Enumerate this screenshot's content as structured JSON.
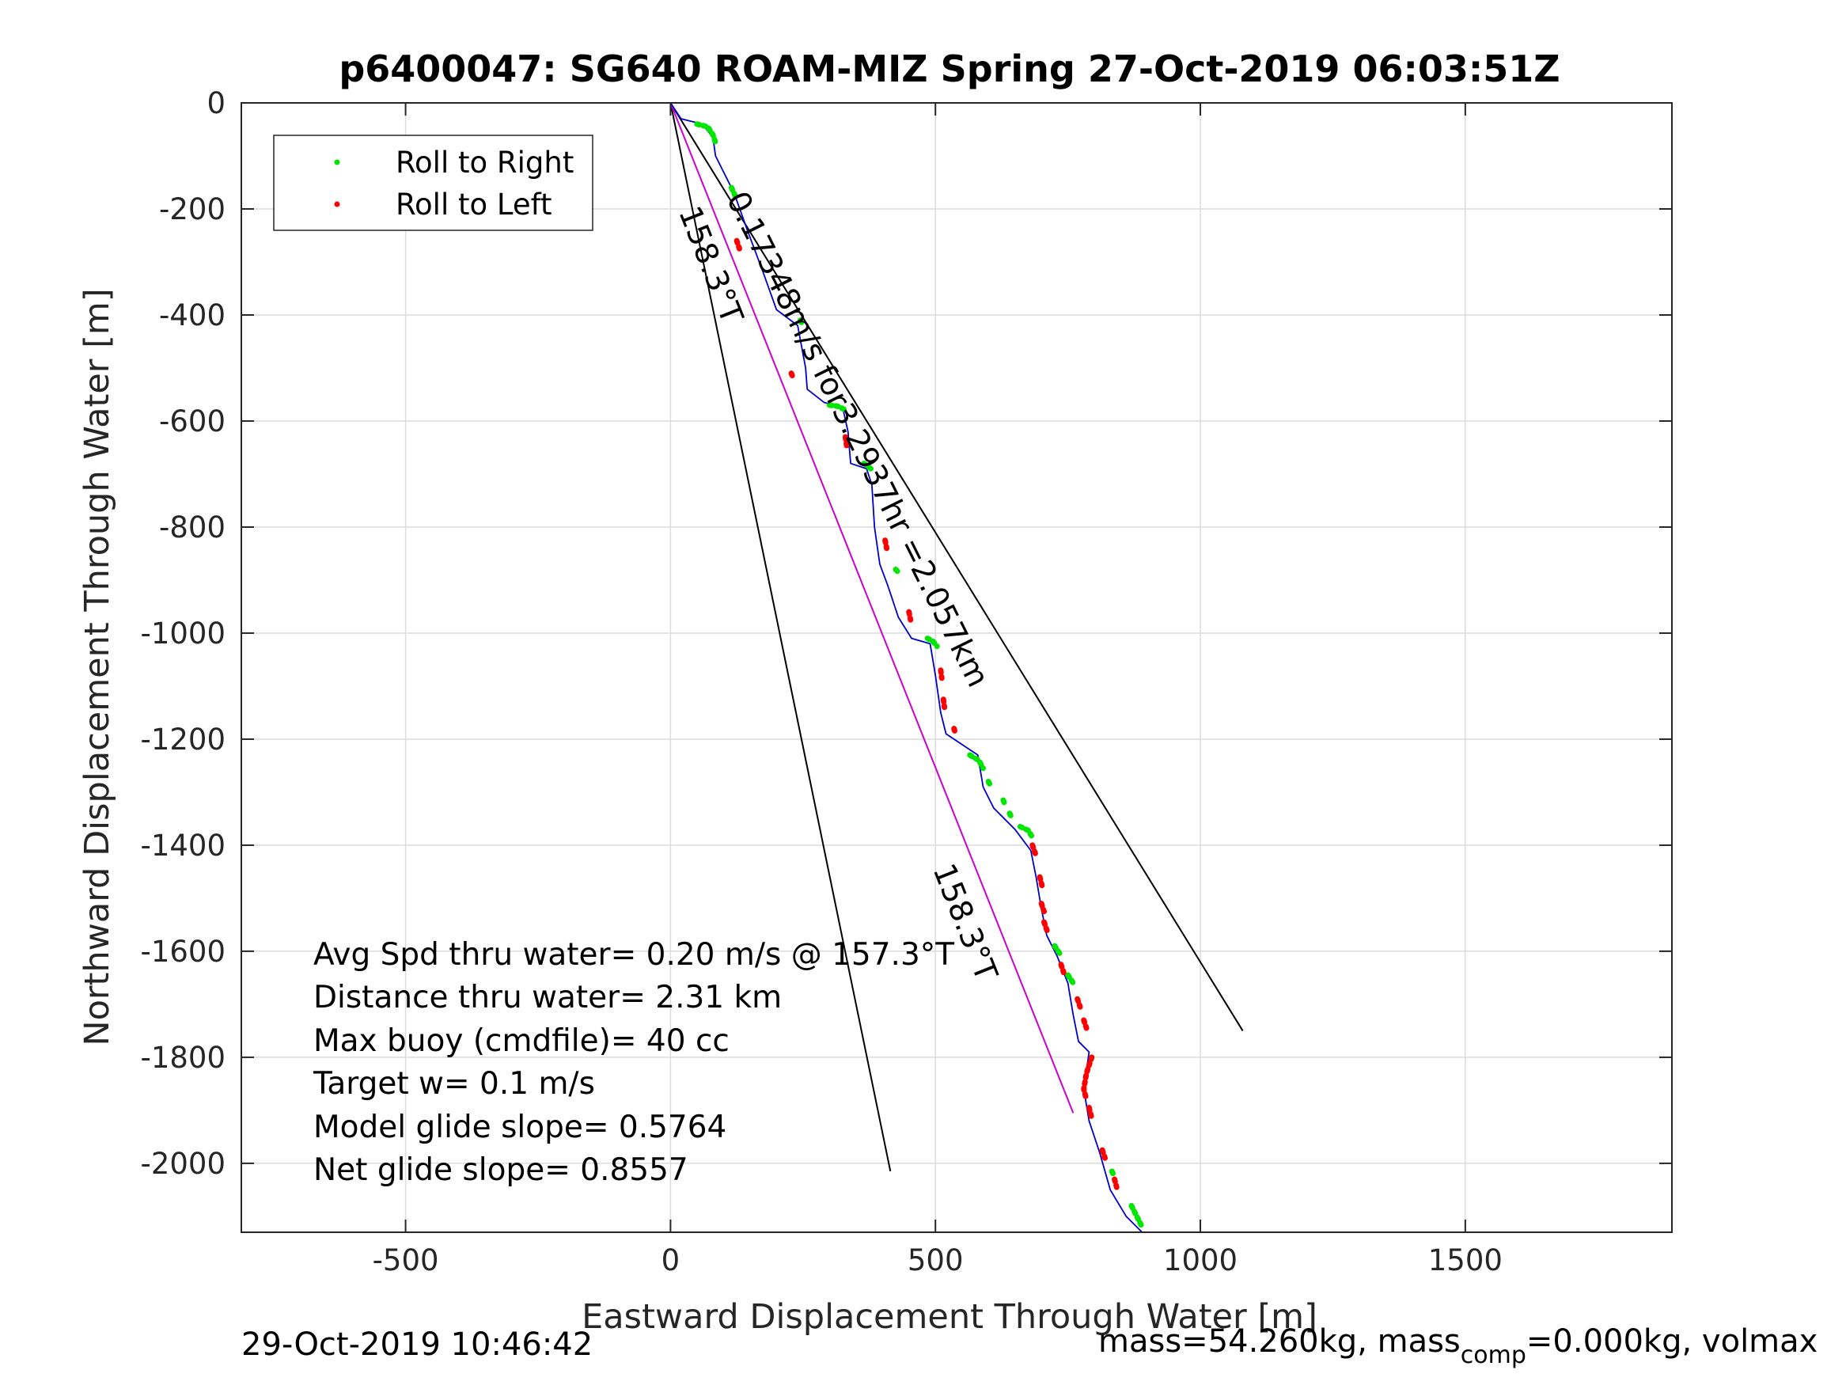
{
  "chart_data": {
    "type": "line",
    "title": "p6400047: SG640 ROAM-MIZ Spring 27-Oct-2019 06:03:51Z",
    "xlabel": "Eastward Displacement Through Water [m]",
    "ylabel": "Northward Displacement Through Water [m]",
    "xlim": [
      -810,
      1890
    ],
    "ylim": [
      -2130,
      0
    ],
    "xticks": [
      -500,
      0,
      500,
      1000,
      1500
    ],
    "yticks": [
      0,
      -200,
      -400,
      -600,
      -800,
      -1000,
      -1200,
      -1400,
      -1600,
      -1800,
      -2000
    ],
    "grid": true,
    "legend": {
      "position": "top-left",
      "entries": [
        {
          "label": "Roll to Right",
          "color": "#00e600"
        },
        {
          "label": "Roll to Left",
          "color": "#ff0000"
        }
      ]
    },
    "track": {
      "color": "#0000cc",
      "x": [
        0,
        20,
        60,
        80,
        85,
        105,
        120,
        145,
        175,
        200,
        240,
        255,
        258,
        290,
        325,
        335,
        340,
        370,
        380,
        385,
        395,
        410,
        430,
        455,
        490,
        500,
        510,
        520,
        580,
        590,
        610,
        650,
        680,
        690,
        700,
        710,
        730,
        750,
        760,
        770,
        790,
        780,
        790,
        810,
        830,
        860,
        890
      ],
      "y": [
        0,
        -30,
        -40,
        -65,
        -100,
        -140,
        -170,
        -240,
        -320,
        -390,
        -420,
        -500,
        -540,
        -565,
        -575,
        -620,
        -680,
        -690,
        -720,
        -800,
        -870,
        -910,
        -970,
        -1010,
        -1020,
        -1080,
        -1150,
        -1190,
        -1230,
        -1290,
        -1330,
        -1370,
        -1410,
        -1460,
        -1520,
        -1570,
        -1610,
        -1660,
        -1720,
        -1770,
        -1790,
        -1860,
        -1920,
        -1980,
        -2050,
        -2100,
        -2130
      ]
    },
    "roll_right_segments": [
      {
        "x": [
          50,
          70,
          80,
          85
        ],
        "y": [
          -40,
          -45,
          -60,
          -75
        ]
      },
      {
        "x": [
          115,
          122
        ],
        "y": [
          -160,
          -175
        ]
      },
      {
        "x": [
          245,
          250
        ],
        "y": [
          -410,
          -420
        ]
      },
      {
        "x": [
          300,
          315,
          328
        ],
        "y": [
          -570,
          -572,
          -578
        ]
      },
      {
        "x": [
          365,
          378
        ],
        "y": [
          -680,
          -690
        ]
      },
      {
        "x": [
          425,
          430
        ],
        "y": [
          -880,
          -885
        ]
      },
      {
        "x": [
          485,
          495,
          503
        ],
        "y": [
          -1010,
          -1015,
          -1025
        ]
      },
      {
        "x": [
          565,
          582,
          590
        ],
        "y": [
          -1230,
          -1240,
          -1255
        ]
      },
      {
        "x": [
          600,
          605
        ],
        "y": [
          -1280,
          -1290
        ]
      },
      {
        "x": [
          628,
          632
        ],
        "y": [
          -1315,
          -1325
        ]
      },
      {
        "x": [
          640,
          645
        ],
        "y": [
          -1340,
          -1350
        ]
      },
      {
        "x": [
          660,
          675,
          683
        ],
        "y": [
          -1365,
          -1372,
          -1385
        ]
      },
      {
        "x": [
          725,
          735
        ],
        "y": [
          -1590,
          -1605
        ]
      },
      {
        "x": [
          750,
          760
        ],
        "y": [
          -1645,
          -1660
        ]
      },
      {
        "x": [
          833,
          838
        ],
        "y": [
          -2015,
          -2025
        ]
      },
      {
        "x": [
          870,
          880,
          890
        ],
        "y": [
          -2080,
          -2100,
          -2120
        ]
      }
    ],
    "roll_left_segments": [
      {
        "x": [
          125,
          130
        ],
        "y": [
          -260,
          -275
        ]
      },
      {
        "x": [
          228,
          232
        ],
        "y": [
          -510,
          -520
        ]
      },
      {
        "x": [
          330,
          333
        ],
        "y": [
          -630,
          -650
        ]
      },
      {
        "x": [
          405,
          408
        ],
        "y": [
          -825,
          -840
        ]
      },
      {
        "x": [
          450,
          453
        ],
        "y": [
          -960,
          -975
        ]
      },
      {
        "x": [
          510,
          512
        ],
        "y": [
          -1070,
          -1085
        ]
      },
      {
        "x": [
          515,
          517
        ],
        "y": [
          -1125,
          -1140
        ]
      },
      {
        "x": [
          535,
          538
        ],
        "y": [
          -1180,
          -1190
        ]
      },
      {
        "x": [
          683,
          690
        ],
        "y": [
          -1400,
          -1420
        ]
      },
      {
        "x": [
          697,
          702
        ],
        "y": [
          -1460,
          -1480
        ]
      },
      {
        "x": [
          700,
          705
        ],
        "y": [
          -1510,
          -1525
        ]
      },
      {
        "x": [
          705,
          712
        ],
        "y": [
          -1545,
          -1565
        ]
      },
      {
        "x": [
          737,
          742
        ],
        "y": [
          -1625,
          -1640
        ]
      },
      {
        "x": [
          768,
          773
        ],
        "y": [
          -1690,
          -1705
        ]
      },
      {
        "x": [
          780,
          785
        ],
        "y": [
          -1730,
          -1745
        ]
      },
      {
        "x": [
          795,
          785,
          780,
          785
        ],
        "y": [
          -1800,
          -1830,
          -1860,
          -1880
        ]
      },
      {
        "x": [
          790,
          795
        ],
        "y": [
          -1895,
          -1915
        ]
      },
      {
        "x": [
          815,
          820
        ],
        "y": [
          -1975,
          -1990
        ]
      },
      {
        "x": [
          838,
          842
        ],
        "y": [
          -2030,
          -2045
        ]
      }
    ],
    "reference_lines": [
      {
        "name": "left_edge",
        "color": "#000000",
        "x": [
          0,
          415
        ],
        "y": [
          0,
          -2015
        ]
      },
      {
        "name": "right_edge",
        "color": "#000000",
        "x": [
          0,
          1080
        ],
        "y": [
          0,
          -1750
        ]
      },
      {
        "name": "net_displacement",
        "color": "#cc00cc",
        "x": [
          0,
          760
        ],
        "y": [
          0,
          -1905
        ]
      }
    ],
    "line_labels": [
      {
        "text": "158.3°T",
        "x": 15,
        "y": -205,
        "angle": 68.3
      },
      {
        "text": "0.17348m/s for3.2937hr =2.057km",
        "x": 105,
        "y": -180,
        "angle": 63.5
      },
      {
        "text": "158.3°T",
        "x": 495,
        "y": -1445,
        "angle": 68.3
      }
    ],
    "annotations": [
      "Avg Spd thru water=  0.20 m/s @ 157.3°T",
      "Distance thru water=  2.31 km",
      "Max buoy (cmdfile)= 40 cc",
      "Target w= 0.1 m/s",
      "Model glide slope= 0.5764",
      "Net glide slope= 0.8557"
    ]
  },
  "footer": {
    "timestamp": "29-Oct-2019 10:46:42",
    "mass_prefix": "mass=54.260kg, mass",
    "mass_subscript": "comp",
    "mass_suffix": "=0.000kg, volmax"
  }
}
